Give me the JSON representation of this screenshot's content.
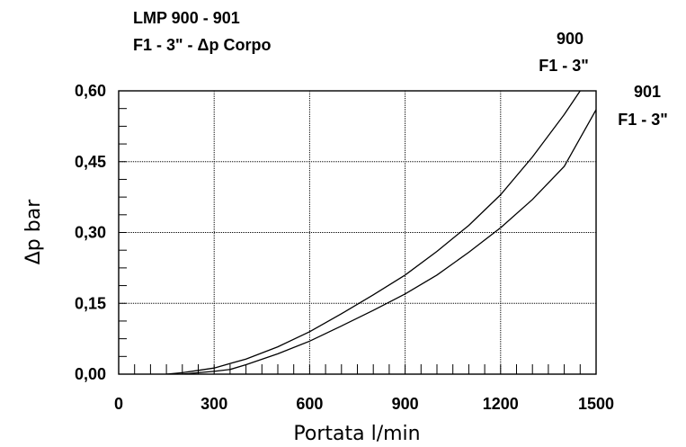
{
  "chart_data": {
    "type": "line",
    "title_line1": "LMP 900 - 901",
    "title_line2": "F1 - 3\" - Δp Corpo",
    "xlabel": "Portata l/min",
    "ylabel": "Δp bar",
    "xlim": [
      0,
      1500
    ],
    "ylim": [
      0,
      0.6
    ],
    "x_ticks": [
      "0",
      "300",
      "600",
      "900",
      "1200",
      "1500"
    ],
    "y_ticks": [
      "0,00",
      "0,15",
      "0,30",
      "0,45",
      "0,60"
    ],
    "grid": true,
    "series": [
      {
        "name_line1": "900",
        "name_line2": "F1 - 3\"",
        "color": "#000000",
        "x": [
          150,
          200,
          250,
          300,
          400,
          500,
          600,
          700,
          800,
          900,
          1000,
          1100,
          1200,
          1300,
          1400,
          1460
        ],
        "y": [
          0.0,
          0.003,
          0.008,
          0.013,
          0.032,
          0.058,
          0.09,
          0.128,
          0.168,
          0.21,
          0.26,
          0.315,
          0.38,
          0.46,
          0.55,
          0.61
        ]
      },
      {
        "name_line1": "901",
        "name_line2": "F1 - 3\"",
        "color": "#000000",
        "x": [
          200,
          250,
          300,
          350,
          400,
          500,
          600,
          700,
          800,
          900,
          1000,
          1100,
          1200,
          1300,
          1400,
          1500
        ],
        "y": [
          0.0,
          0.003,
          0.006,
          0.01,
          0.02,
          0.043,
          0.07,
          0.102,
          0.135,
          0.17,
          0.21,
          0.258,
          0.31,
          0.37,
          0.44,
          0.56
        ]
      }
    ]
  }
}
